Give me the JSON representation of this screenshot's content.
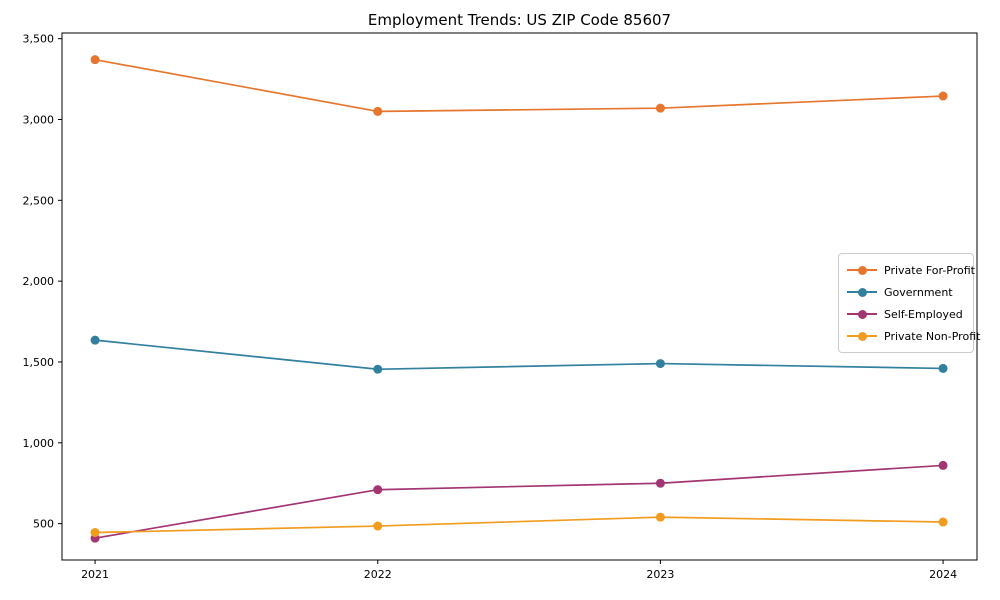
{
  "chart_data": {
    "type": "line",
    "title": "Employment Trends: US ZIP Code 85607",
    "xlabel": "",
    "ylabel": "",
    "x": [
      2021,
      2022,
      2023,
      2024
    ],
    "x_tick_labels": [
      "2021",
      "2022",
      "2023",
      "2024"
    ],
    "yticks": [
      500,
      1000,
      1500,
      2000,
      2500,
      3000,
      3500
    ],
    "ytick_labels": [
      "500",
      "1,000",
      "1,500",
      "2,000",
      "2,500",
      "3,000",
      "3,500"
    ],
    "xlim": [
      2020.883,
      2024.12
    ],
    "ylim": [
      275,
      3535
    ],
    "grid": false,
    "legend_position": "center-right",
    "marker": "circle",
    "series": [
      {
        "name": "Private For-Profit",
        "color": "#E6762E",
        "values": [
          3370,
          3050,
          3070,
          3145
        ]
      },
      {
        "name": "Government",
        "color": "#31819E",
        "values": [
          1635,
          1455,
          1490,
          1460
        ]
      },
      {
        "name": "Self-Employed",
        "color": "#A23572",
        "values": [
          410,
          710,
          750,
          860
        ]
      },
      {
        "name": "Private Non-Profit",
        "color": "#F29C1F",
        "values": [
          445,
          485,
          540,
          510
        ]
      }
    ]
  }
}
